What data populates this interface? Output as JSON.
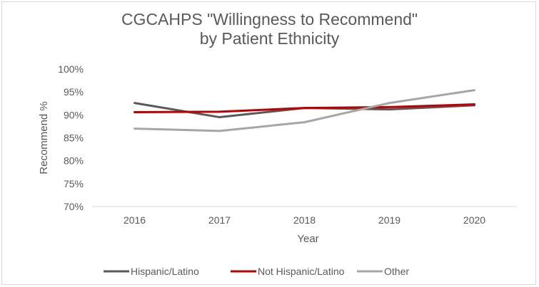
{
  "chart_data": {
    "type": "line",
    "title": "CGCAHPS \"Willingness to Recommend\"",
    "subtitle": "by Patient Ethnicity",
    "xlabel": "Year",
    "ylabel": "Recommend %",
    "categories": [
      "2016",
      "2017",
      "2018",
      "2019",
      "2020"
    ],
    "ylim": [
      70,
      100
    ],
    "yticks": [
      "70%",
      "75%",
      "80%",
      "85%",
      "90%",
      "95%",
      "100%"
    ],
    "grid": false,
    "legend_position": "bottom",
    "series": [
      {
        "name": "Hispanic/Latino",
        "color": "#595959",
        "values": [
          92.6,
          89.5,
          91.5,
          91.2,
          92.1
        ]
      },
      {
        "name": "Not Hispanic/Latino",
        "color": "#c00000",
        "values": [
          90.6,
          90.7,
          91.5,
          91.7,
          92.3
        ]
      },
      {
        "name": "Other",
        "color": "#a6a6a6",
        "values": [
          87.0,
          86.5,
          88.4,
          92.6,
          95.4
        ]
      }
    ]
  }
}
